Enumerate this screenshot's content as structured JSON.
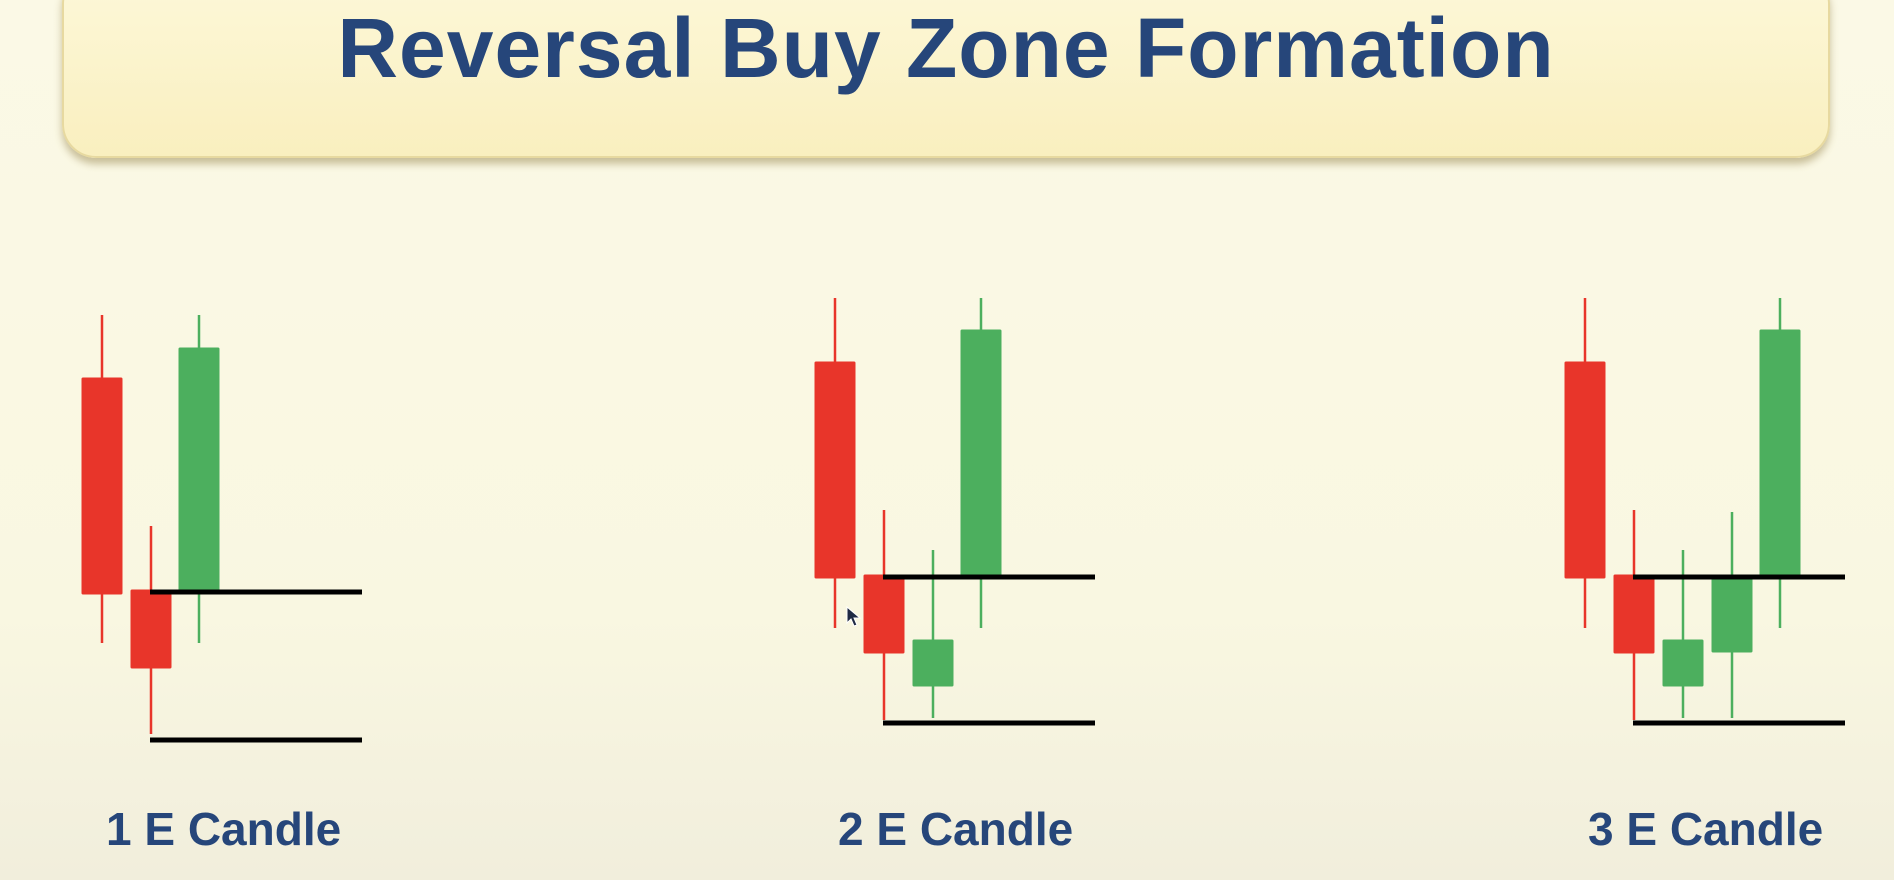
{
  "title": "Reversal Buy Zone Formation",
  "colors": {
    "bearish": "#e8352a",
    "bullish": "#4caf5e",
    "zone_line": "#000000",
    "title_text": "#26467a",
    "banner_fill": "#fbf3cb"
  },
  "patterns": [
    {
      "label": "1 E Candle"
    },
    {
      "label": "2 E Candle"
    },
    {
      "label": "3 E Candle"
    }
  ]
}
